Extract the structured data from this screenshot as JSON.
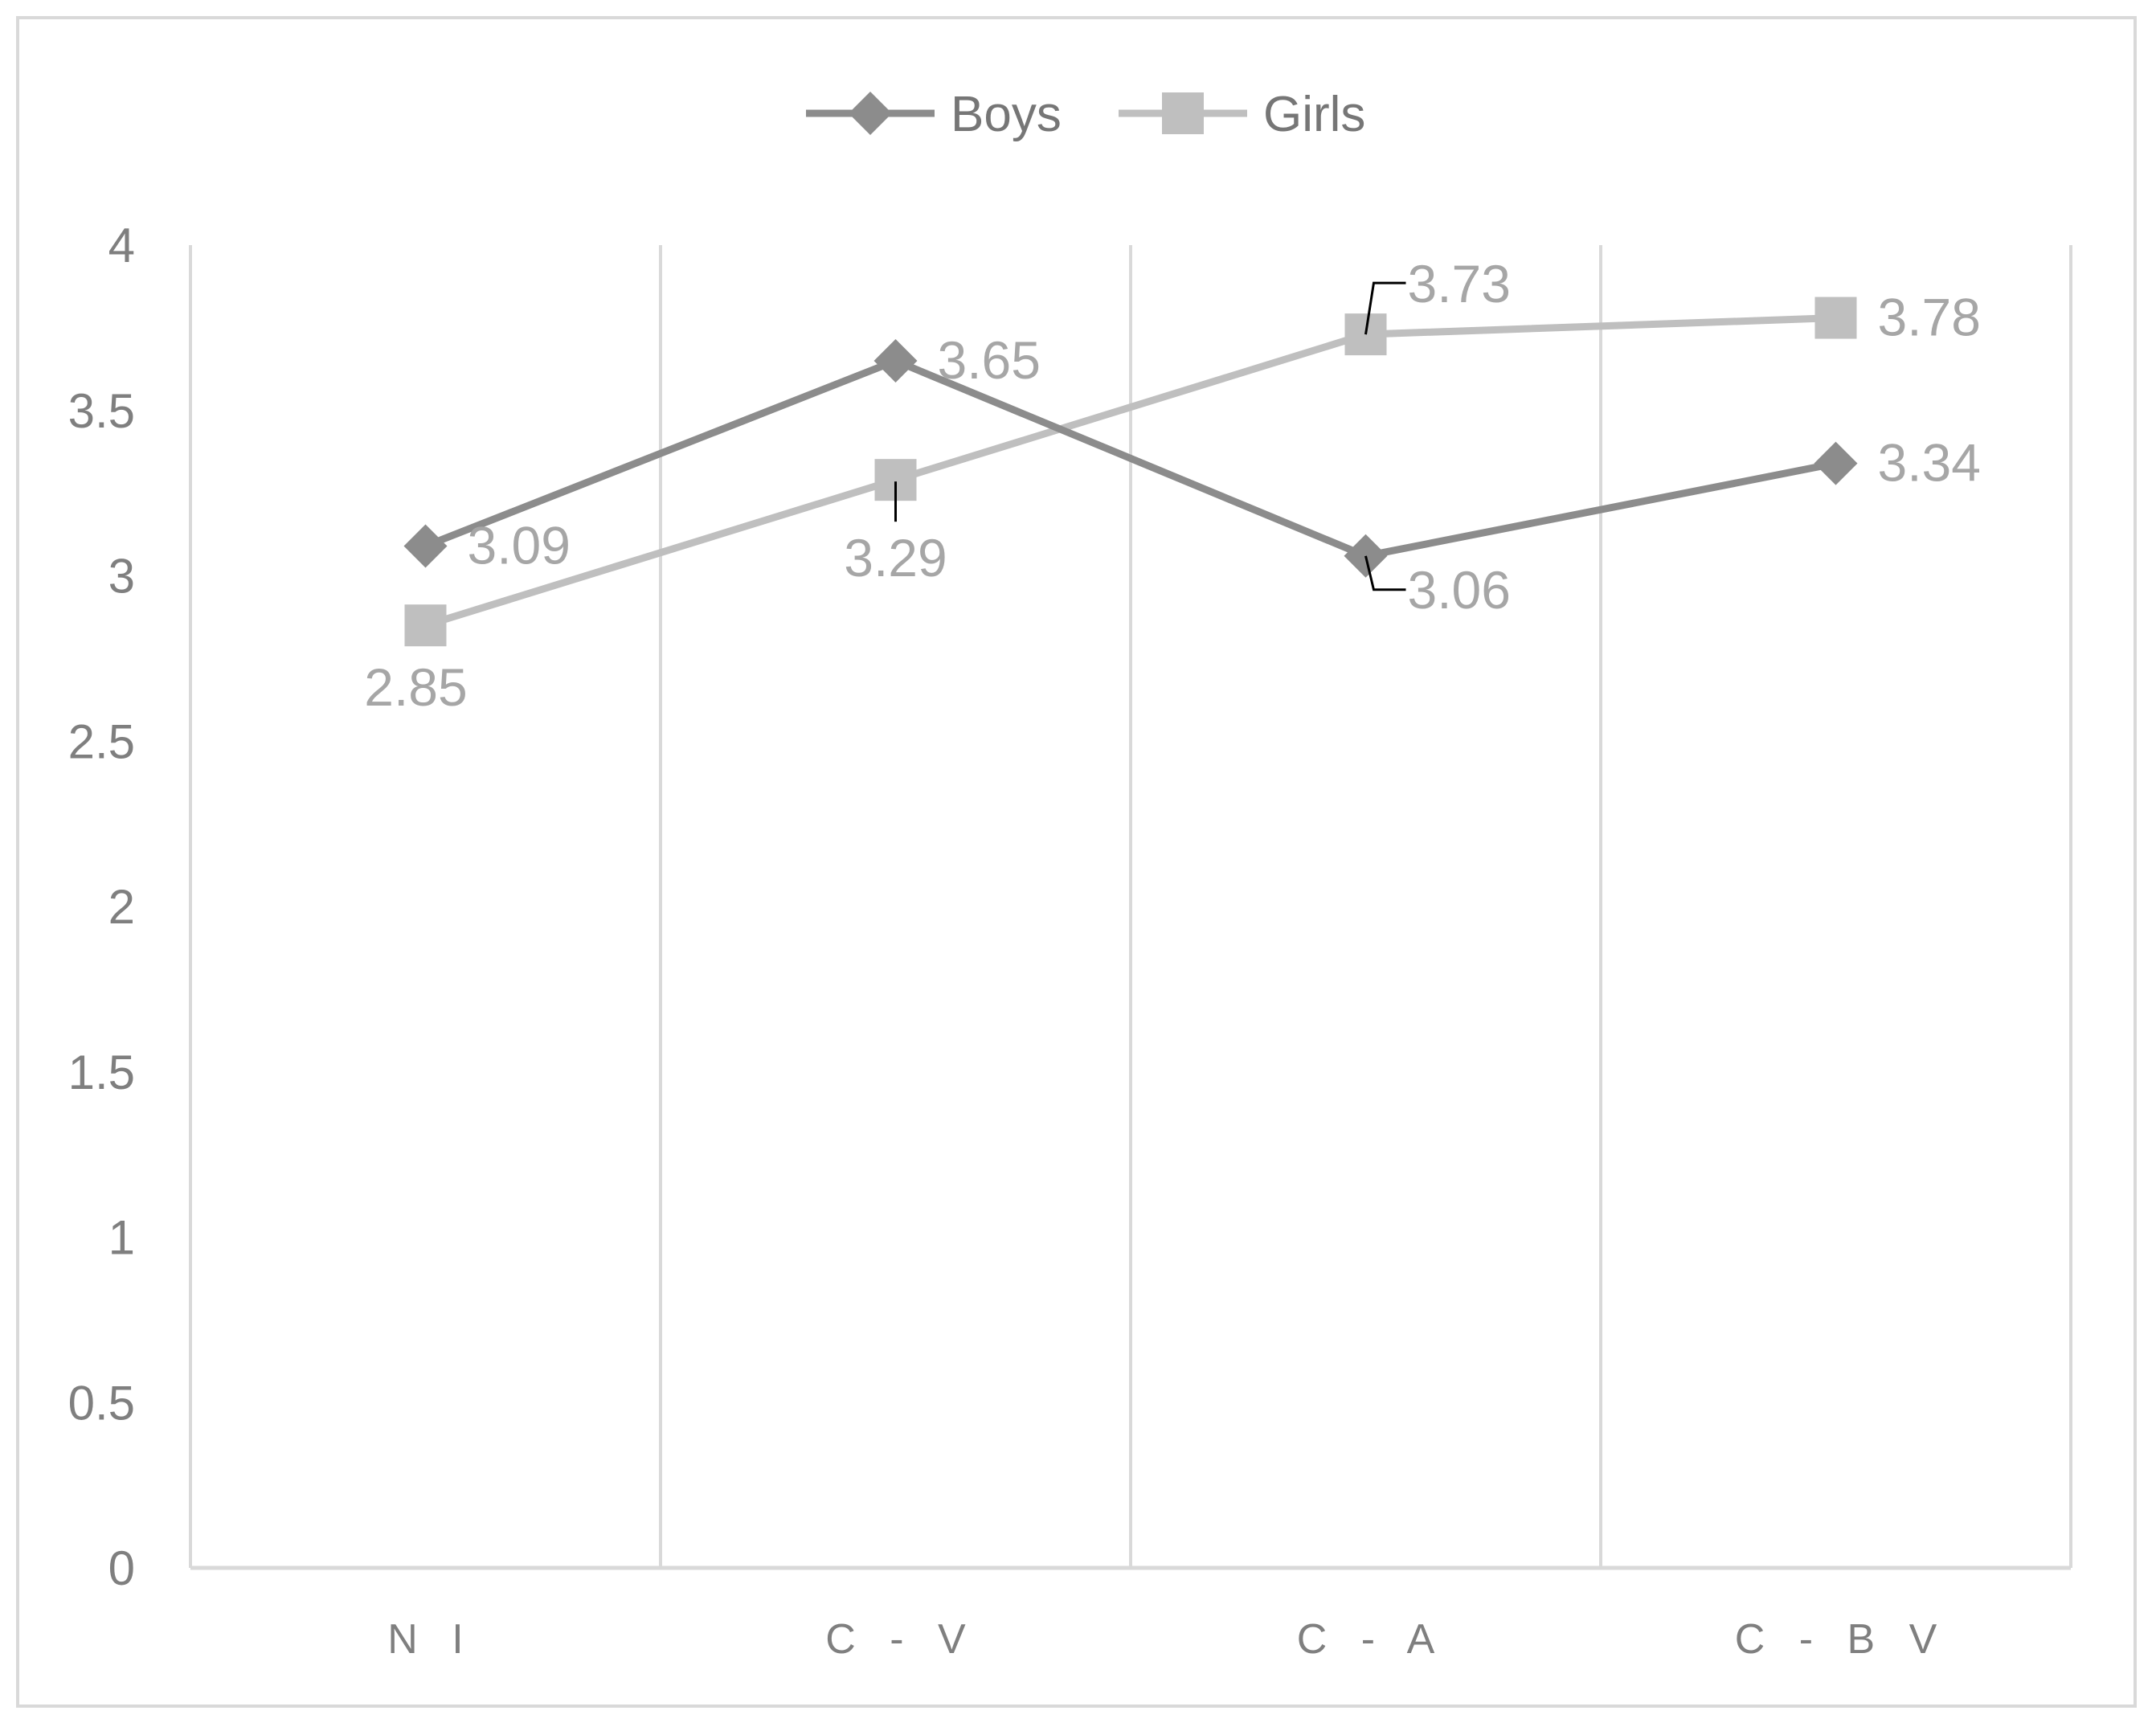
{
  "chart_data": {
    "type": "line",
    "categories": [
      "N I",
      "C - V",
      "C - A",
      "C - B V"
    ],
    "series": [
      {
        "name": "Boys",
        "values": [
          3.09,
          3.65,
          3.06,
          3.34
        ],
        "color": "#8c8c8c",
        "marker": "diamond"
      },
      {
        "name": "Girls",
        "values": [
          2.85,
          3.29,
          3.73,
          3.78
        ],
        "color": "#bfbfbf",
        "marker": "square"
      }
    ],
    "ylim": [
      0,
      4
    ],
    "yticks": [
      "0",
      "0.5",
      "1",
      "1.5",
      "2",
      "2.5",
      "3",
      "3.5",
      "4"
    ],
    "data_labels": {
      "Boys": [
        "3.09",
        "3.65",
        "3.06",
        "3.34"
      ],
      "Girls": [
        "2.85",
        "3.29",
        "3.73",
        "3.78"
      ]
    },
    "grid": "vertical",
    "legend_position": "top"
  }
}
